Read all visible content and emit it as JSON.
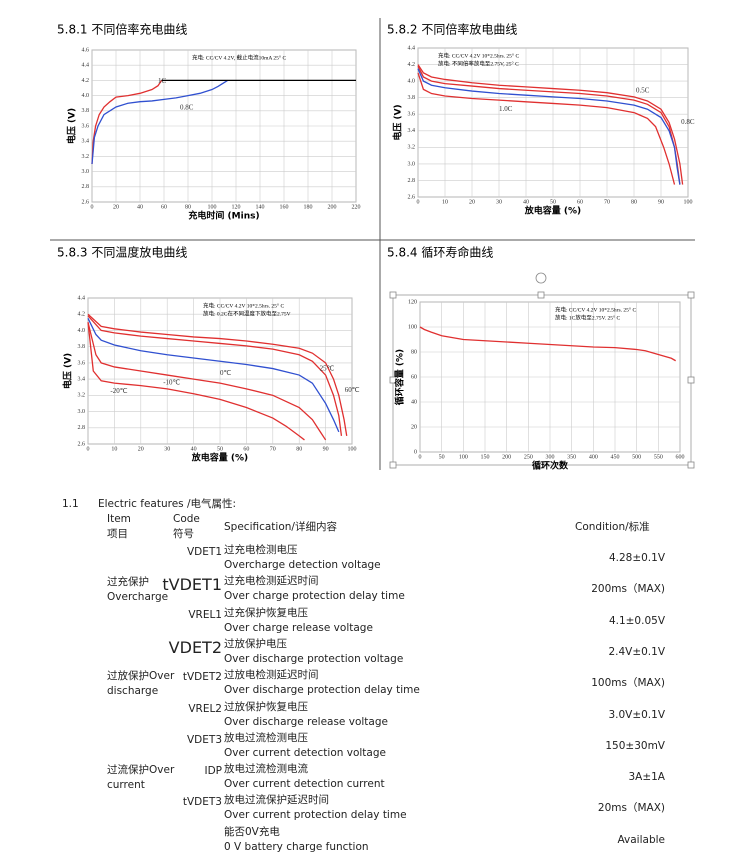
{
  "chart_data": [
    {
      "type": "line",
      "title": "5.8.1 不同倍率充电曲线",
      "ylabel": "电压 (V)",
      "xlabel": "充电时间 (Mins)",
      "annotations": [
        "充电: CC/CV 4.2V, 截止电流10mA 25° C"
      ],
      "xlim": [
        0,
        220
      ],
      "xticks": [
        0,
        20,
        40,
        60,
        80,
        100,
        120,
        140,
        160,
        180,
        200,
        220
      ],
      "ylim": [
        2.6,
        4.6
      ],
      "yticks": [
        2.6,
        2.8,
        {
          "value": 3,
          "label": "3.0"
        },
        3.2,
        3.4,
        3.6,
        3.8,
        {
          "value": 4,
          "label": "4.0"
        },
        4.2,
        4.4,
        4.6
      ],
      "grid": true,
      "series": [
        {
          "name": "1C",
          "color": "#e03030",
          "x": [
            0,
            1,
            3,
            6,
            10,
            15,
            20,
            30,
            40,
            50,
            55,
            58
          ],
          "values": [
            3.1,
            3.4,
            3.6,
            3.75,
            3.85,
            3.92,
            3.98,
            4.0,
            4.03,
            4.08,
            4.13,
            4.2
          ]
        },
        {
          "name": "0.8C",
          "color": "#3050d0",
          "x": [
            0,
            2,
            5,
            10,
            20,
            30,
            40,
            50,
            60,
            70,
            80,
            90,
            100,
            105,
            110,
            113
          ],
          "values": [
            3.1,
            3.45,
            3.6,
            3.75,
            3.85,
            3.9,
            3.92,
            3.93,
            3.95,
            3.97,
            4.0,
            4.03,
            4.08,
            4.12,
            4.17,
            4.2
          ]
        },
        {
          "color": "#000000",
          "x": [
            58,
            220
          ],
          "values": [
            4.2,
            4.2
          ]
        }
      ]
    },
    {
      "type": "line",
      "title": "5.8.2 不同倍率放电曲线",
      "ylabel": "电压 (V)",
      "xlabel": "放电容量 (%)",
      "annotations": [
        "充电: CC/CV 4.2V 10*2.5hrs. 25° C",
        "放电: 不同倍率放电至2.75V, 25° C"
      ],
      "xlim": [
        0,
        100
      ],
      "xticks": [
        0,
        10,
        20,
        30,
        40,
        50,
        60,
        70,
        80,
        90,
        100
      ],
      "ylim": [
        2.6,
        4.4
      ],
      "yticks": [
        2.6,
        2.8,
        {
          "value": 3,
          "label": "3.0"
        },
        3.2,
        3.4,
        3.6,
        3.8,
        {
          "value": 4,
          "label": "4.0"
        },
        4.2,
        4.4
      ],
      "grid": true,
      "series": [
        {
          "name": "0.5C",
          "color": "#e03030",
          "x": [
            0,
            2,
            5,
            10,
            20,
            30,
            40,
            50,
            60,
            70,
            80,
            85,
            90,
            93,
            95,
            97,
            98
          ],
          "values": [
            4.2,
            4.1,
            4.05,
            4.02,
            3.98,
            3.95,
            3.93,
            3.91,
            3.89,
            3.86,
            3.81,
            3.76,
            3.66,
            3.5,
            3.3,
            3.0,
            2.75
          ]
        },
        {
          "name": "0.8C",
          "color": "#e03030",
          "x": [
            0,
            2,
            5,
            10,
            20,
            30,
            40,
            50,
            60,
            70,
            80,
            85,
            90,
            93,
            95,
            96,
            97
          ],
          "values": [
            4.18,
            4.05,
            4.0,
            3.97,
            3.94,
            3.91,
            3.89,
            3.87,
            3.85,
            3.82,
            3.77,
            3.72,
            3.62,
            3.45,
            3.2,
            3.0,
            2.75
          ]
        },
        {
          "color": "#3050d0",
          "x": [
            0,
            2,
            5,
            10,
            20,
            30,
            40,
            50,
            60,
            70,
            80,
            85,
            90,
            93,
            95,
            96,
            97
          ],
          "values": [
            4.15,
            4.0,
            3.95,
            3.92,
            3.88,
            3.85,
            3.83,
            3.81,
            3.79,
            3.76,
            3.71,
            3.66,
            3.56,
            3.4,
            3.2,
            2.95,
            2.75
          ]
        },
        {
          "name": "1.0C",
          "color": "#e03030",
          "x": [
            0,
            2,
            5,
            10,
            20,
            30,
            40,
            50,
            60,
            70,
            80,
            85,
            88,
            91,
            93,
            95
          ],
          "values": [
            4.1,
            3.9,
            3.85,
            3.82,
            3.79,
            3.77,
            3.75,
            3.73,
            3.71,
            3.68,
            3.62,
            3.55,
            3.45,
            3.2,
            3.0,
            2.75
          ]
        }
      ]
    },
    {
      "type": "line",
      "title": "5.8.3 不同温度放电曲线",
      "ylabel": "电压 (V)",
      "xlabel": "放电容量 (%)",
      "annotations": [
        "充电: CC/CV 4.2V 10*2.5hrs. 25° C",
        "放电: 0.2C在不同温度下放电至2.75V"
      ],
      "xlim": [
        0,
        100
      ],
      "xticks": [
        0,
        10,
        20,
        30,
        40,
        50,
        60,
        70,
        80,
        90,
        100
      ],
      "ylim": [
        2.6,
        4.4
      ],
      "yticks": [
        2.6,
        2.8,
        {
          "value": 3,
          "label": "3.0"
        },
        3.2,
        3.4,
        3.6,
        3.8,
        {
          "value": 4,
          "label": "4.0"
        },
        4.2,
        4.4
      ],
      "grid": true,
      "series": [
        {
          "name": "60℃",
          "color": "#e03030",
          "x": [
            0,
            5,
            10,
            20,
            30,
            40,
            50,
            60,
            70,
            80,
            85,
            90,
            93,
            95,
            97,
            98
          ],
          "values": [
            4.2,
            4.05,
            4.02,
            3.98,
            3.95,
            3.92,
            3.9,
            3.87,
            3.83,
            3.78,
            3.72,
            3.6,
            3.4,
            3.2,
            2.9,
            2.7
          ]
        },
        {
          "name": "25℃",
          "color": "#e03030",
          "x": [
            0,
            5,
            10,
            20,
            30,
            40,
            50,
            60,
            70,
            80,
            85,
            90,
            93,
            95,
            96
          ],
          "values": [
            4.18,
            4.0,
            3.97,
            3.93,
            3.9,
            3.87,
            3.84,
            3.81,
            3.77,
            3.7,
            3.62,
            3.45,
            3.2,
            2.95,
            2.7
          ]
        },
        {
          "name": "0℃",
          "color": "#3050d0",
          "x": [
            0,
            3,
            5,
            10,
            20,
            30,
            40,
            50,
            60,
            70,
            80,
            85,
            90,
            93,
            95
          ],
          "values": [
            4.15,
            3.95,
            3.88,
            3.82,
            3.75,
            3.7,
            3.66,
            3.62,
            3.58,
            3.53,
            3.45,
            3.35,
            3.1,
            2.9,
            2.75
          ]
        },
        {
          "name": "-10℃",
          "color": "#e03030",
          "x": [
            0,
            3,
            5,
            10,
            20,
            30,
            40,
            50,
            60,
            70,
            80,
            85,
            88,
            90
          ],
          "values": [
            4.1,
            3.7,
            3.6,
            3.55,
            3.5,
            3.45,
            3.4,
            3.35,
            3.28,
            3.2,
            3.05,
            2.9,
            2.75,
            2.65
          ]
        },
        {
          "name": "-20℃",
          "color": "#e03030",
          "x": [
            0,
            2,
            5,
            10,
            20,
            30,
            40,
            50,
            60,
            70,
            75,
            80,
            82
          ],
          "values": [
            4.1,
            3.5,
            3.38,
            3.35,
            3.32,
            3.28,
            3.22,
            3.15,
            3.05,
            2.92,
            2.82,
            2.7,
            2.65
          ]
        }
      ]
    },
    {
      "type": "line",
      "title": "5.8.4 循环寿命曲线",
      "ylabel": "循环容量 (%)",
      "xlabel": "循环次数",
      "annotations": [
        "充电: CC/CV 4.2V 10*2.5hrs. 25° C",
        "放电: 1C放电至2.75V. 25° C"
      ],
      "xlim": [
        0,
        600
      ],
      "xticks": [
        0,
        50,
        100,
        150,
        200,
        250,
        300,
        350,
        400,
        450,
        500,
        550,
        600
      ],
      "ylim": [
        0,
        120
      ],
      "yticks": [
        0,
        20,
        40,
        60,
        80,
        100,
        120
      ],
      "grid": true,
      "series": [
        {
          "color": "#e03030",
          "x": [
            0,
            10,
            25,
            50,
            100,
            150,
            200,
            250,
            300,
            350,
            400,
            450,
            500,
            520,
            540,
            560,
            580,
            590
          ],
          "values": [
            100,
            98,
            96,
            93,
            90,
            89,
            88,
            87,
            86,
            85,
            84,
            83.5,
            82,
            81,
            79,
            77,
            75,
            73
          ]
        }
      ]
    }
  ],
  "table": {
    "number": "1.1",
    "title": "Electric features /电气属性:",
    "header": {
      "item": [
        "Item",
        "项目"
      ],
      "code": [
        "Code",
        "符号"
      ],
      "spec": "Specification/详细内容",
      "condition": "Condition/标准"
    },
    "groups": [
      {
        "item": [
          "过充保护",
          "Overcharge"
        ],
        "rows": [
          {
            "code": "VDET1",
            "spec": [
              "过充电检测电压",
              "Overcharge detection voltage"
            ],
            "condition": "4.28±0.1V"
          },
          {
            "code": "tVDET1",
            "spec": [
              "过充电检测延迟时间",
              "Over charge protection delay time"
            ],
            "condition": "200ms（MAX)"
          },
          {
            "code": "VREL1",
            "spec": [
              "过充保护恢复电压",
              "Over charge release voltage"
            ],
            "condition": "4.1±0.05V"
          }
        ]
      },
      {
        "item": [
          "过放保护Over",
          "discharge"
        ],
        "rows": [
          {
            "code": "VDET2",
            "spec": [
              "过放保护电压",
              "Over discharge protection voltage"
            ],
            "condition": "2.4V±0.1V"
          },
          {
            "code": "tVDET2",
            "spec": [
              "过放电检测延迟时间",
              "Over discharge protection delay time"
            ],
            "condition": "100ms（MAX)"
          },
          {
            "code": "VREL2",
            "spec": [
              "过放保护恢复电压",
              "Over discharge release voltage"
            ],
            "condition": "3.0V±0.1V"
          }
        ]
      },
      {
        "item": [
          "过流保护Over",
          "current"
        ],
        "rows": [
          {
            "code": "VDET3",
            "spec": [
              "放电过流检测电压",
              "Over current detection voltage"
            ],
            "condition": "150±30mV"
          },
          {
            "code": "IDP",
            "spec": [
              "放电过流检测电流",
              "Over current detection current"
            ],
            "condition": "3A±1A"
          },
          {
            "code": "tVDET3",
            "spec": [
              "放电过流保护延迟时间",
              "Over current protection delay time"
            ],
            "condition": "20ms（MAX)"
          }
        ]
      },
      {
        "rows": [
          {
            "spec": [
              "能否0V充电",
              "0 V battery charge function"
            ],
            "condition": "Available"
          }
        ]
      }
    ]
  }
}
